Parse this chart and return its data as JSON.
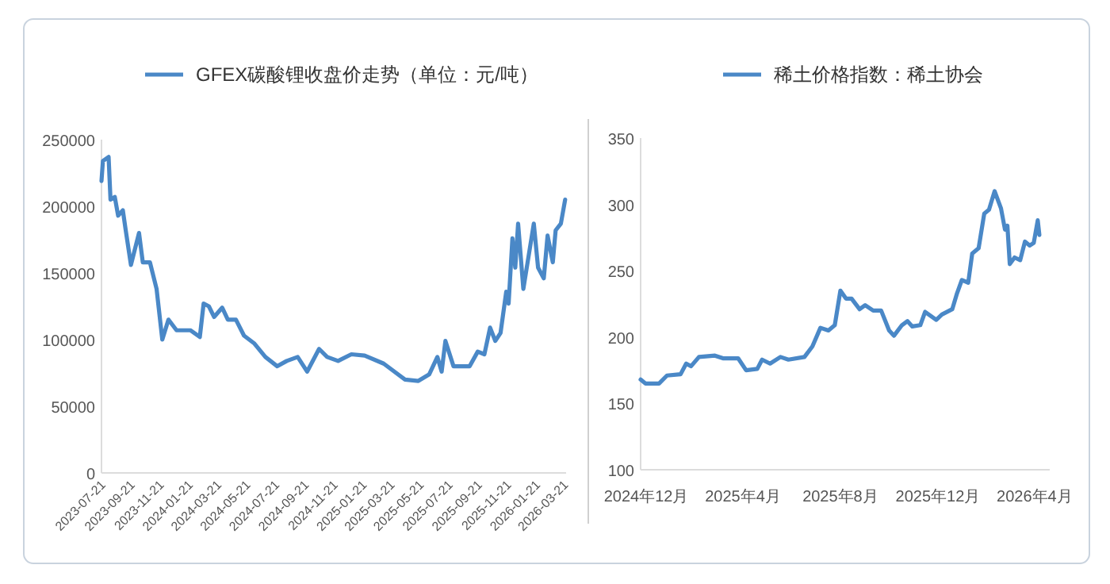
{
  "chart_data": [
    {
      "type": "line",
      "legend": "top",
      "xlim": [
        "2023-07-21",
        "2026-03-25"
      ],
      "ylim": [
        0,
        250000
      ],
      "yticks": [
        0,
        50000,
        100000,
        150000,
        200000,
        250000
      ],
      "xticks": [
        "2023-07-21",
        "2023-09-21",
        "2023-11-21",
        "2024-01-21",
        "2024-03-21",
        "2024-05-21",
        "2024-07-21",
        "2024-09-21",
        "2024-11-21",
        "2025-01-21",
        "2025-03-21",
        "2025-05-21",
        "2025-07-21",
        "2025-09-21",
        "2025-11-21",
        "2026-01-21",
        "2026-03-21"
      ],
      "x": [
        "2023-07-21",
        "2023-07-24",
        "2023-08-05",
        "2023-08-09",
        "2023-08-18",
        "2023-08-25",
        "2023-09-04",
        "2023-09-10",
        "2023-09-21",
        "2023-10-08",
        "2023-10-16",
        "2023-10-31",
        "2023-11-14",
        "2023-11-26",
        "2023-12-09",
        "2023-12-26",
        "2024-01-24",
        "2024-02-13",
        "2024-02-21",
        "2024-03-03",
        "2024-03-14",
        "2024-03-31",
        "2024-04-12",
        "2024-04-29",
        "2024-05-16",
        "2024-06-07",
        "2024-06-30",
        "2024-07-25",
        "2024-08-14",
        "2024-09-06",
        "2024-09-26",
        "2024-10-21",
        "2024-11-07",
        "2024-11-30",
        "2024-12-28",
        "2025-01-25",
        "2025-03-06",
        "2025-04-20",
        "2025-05-18",
        "2025-06-10",
        "2025-06-27",
        "2025-07-06",
        "2025-07-14",
        "2025-07-31",
        "2025-09-03",
        "2025-09-20",
        "2025-10-04",
        "2025-10-16",
        "2025-10-27",
        "2025-11-07",
        "2025-11-19",
        "2025-11-24",
        "2025-12-02",
        "2025-12-08",
        "2025-12-14",
        "2025-12-25",
        "2026-01-16",
        "2026-01-25",
        "2026-02-06",
        "2026-02-14",
        "2026-02-25",
        "2026-03-03",
        "2026-03-14",
        "2026-03-23"
      ],
      "series": [
        {
          "name": "GFEX碳酸锂收盘价走势（单位：元/吨）",
          "color": "#4a88c7",
          "values": [
            219000,
            234000,
            237000,
            205000,
            207000,
            193000,
            197000,
            182000,
            156000,
            180000,
            158000,
            158000,
            138000,
            100000,
            115000,
            107000,
            107000,
            102000,
            127000,
            125000,
            117000,
            124000,
            115000,
            115000,
            103000,
            97000,
            87000,
            80000,
            84000,
            87000,
            76000,
            93000,
            87000,
            84000,
            89000,
            88000,
            82000,
            70000,
            69000,
            74000,
            87000,
            76000,
            99000,
            80000,
            80000,
            91000,
            89000,
            109000,
            99000,
            105000,
            136000,
            127000,
            176000,
            154000,
            187000,
            138000,
            187000,
            154000,
            146000,
            178000,
            158000,
            182000,
            187000,
            205000
          ]
        }
      ]
    },
    {
      "type": "line",
      "legend": "top",
      "xlim": [
        "2024-11-24",
        "2026-04-20"
      ],
      "ylim": [
        100,
        350
      ],
      "yticks": [
        100,
        150,
        200,
        250,
        300,
        350
      ],
      "xticks": [
        {
          "value": "2024-12-01",
          "label": "2024年12月"
        },
        {
          "value": "2025-04-01",
          "label": "2025年4月"
        },
        {
          "value": "2025-08-01",
          "label": "2025年8月"
        },
        {
          "value": "2025-12-01",
          "label": "2025年12月"
        },
        {
          "value": "2026-04-01",
          "label": "2026年4月"
        }
      ],
      "x": [
        "2024-11-24",
        "2024-11-30",
        "2024-12-17",
        "2024-12-27",
        "2025-01-13",
        "2025-01-20",
        "2025-01-26",
        "2025-02-05",
        "2025-02-25",
        "2025-03-07",
        "2025-03-26",
        "2025-04-05",
        "2025-04-19",
        "2025-04-25",
        "2025-05-05",
        "2025-05-18",
        "2025-05-28",
        "2025-06-17",
        "2025-06-27",
        "2025-07-07",
        "2025-07-17",
        "2025-07-25",
        "2025-08-01",
        "2025-08-08",
        "2025-08-15",
        "2025-08-25",
        "2025-09-01",
        "2025-09-11",
        "2025-09-21",
        "2025-10-01",
        "2025-10-07",
        "2025-10-17",
        "2025-10-24",
        "2025-10-30",
        "2025-11-09",
        "2025-11-15",
        "2025-11-29",
        "2025-12-06",
        "2025-12-19",
        "2025-12-25",
        "2025-12-31",
        "2026-01-08",
        "2026-01-13",
        "2026-01-21",
        "2026-01-28",
        "2026-02-03",
        "2026-02-10",
        "2026-02-18",
        "2026-02-23",
        "2026-02-26",
        "2026-03-01",
        "2026-03-07",
        "2026-03-14",
        "2026-03-20",
        "2026-03-26",
        "2026-03-31",
        "2026-04-05",
        "2026-04-07"
      ],
      "series": [
        {
          "name": "稀土价格指数：稀土协会",
          "color": "#4a88c7",
          "values": [
            168,
            165,
            165,
            171,
            172,
            180,
            178,
            185,
            186,
            184,
            184,
            175,
            176,
            183,
            180,
            185,
            183,
            185,
            193,
            207,
            205,
            209,
            235,
            229,
            229,
            221,
            224,
            220,
            220,
            205,
            201,
            209,
            212,
            208,
            209,
            219,
            213,
            217,
            221,
            233,
            243,
            241,
            263,
            267,
            293,
            296,
            310,
            297,
            281,
            284,
            255,
            260,
            258,
            272,
            269,
            271,
            288,
            277
          ]
        }
      ]
    }
  ]
}
